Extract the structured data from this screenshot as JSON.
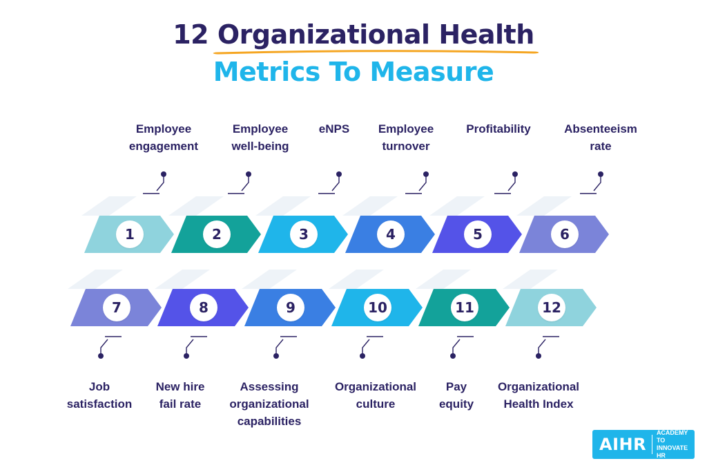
{
  "title": {
    "prefix": "12",
    "highlight": "Organizational Health",
    "line2": "Metrics To Measure"
  },
  "colors": {
    "navy": "#2b2263",
    "sky": "#1fb5ea",
    "underline": "#f5a623",
    "c1": "#8fd3dd",
    "c2": "#13a29a",
    "c3": "#1fb5ea",
    "c4": "#3a7fe3",
    "c5": "#5453e8",
    "c6": "#7b84d9"
  },
  "metrics": [
    {
      "number": "1",
      "label": [
        "Employee",
        "engagement"
      ],
      "color": "#8fd3dd"
    },
    {
      "number": "2",
      "label": [
        "Employee",
        "well-being"
      ],
      "color": "#13a29a"
    },
    {
      "number": "3",
      "label": [
        "eNPS"
      ],
      "color": "#1fb5ea"
    },
    {
      "number": "4",
      "label": [
        "Employee",
        "turnover"
      ],
      "color": "#3a7fe3"
    },
    {
      "number": "5",
      "label": [
        "Profitability"
      ],
      "color": "#5453e8"
    },
    {
      "number": "6",
      "label": [
        "Absenteeism",
        "rate"
      ],
      "color": "#7b84d9"
    },
    {
      "number": "7",
      "label": [
        "Job",
        "satisfaction"
      ],
      "color": "#7b84d9"
    },
    {
      "number": "8",
      "label": [
        "New hire",
        "fail rate"
      ],
      "color": "#5453e8"
    },
    {
      "number": "9",
      "label": [
        "Assessing",
        "organizational",
        "capabilities"
      ],
      "color": "#3a7fe3"
    },
    {
      "number": "10",
      "label": [
        "Organizational",
        "culture"
      ],
      "color": "#1fb5ea"
    },
    {
      "number": "11",
      "label": [
        "Pay",
        "equity"
      ],
      "color": "#13a29a"
    },
    {
      "number": "12",
      "label": [
        "Organizational",
        "Health Index"
      ],
      "color": "#8fd3dd"
    }
  ],
  "logo": {
    "main": "AIHR",
    "sub_line1": "ACADEMY TO",
    "sub_line2": "INNOVATE HR"
  }
}
